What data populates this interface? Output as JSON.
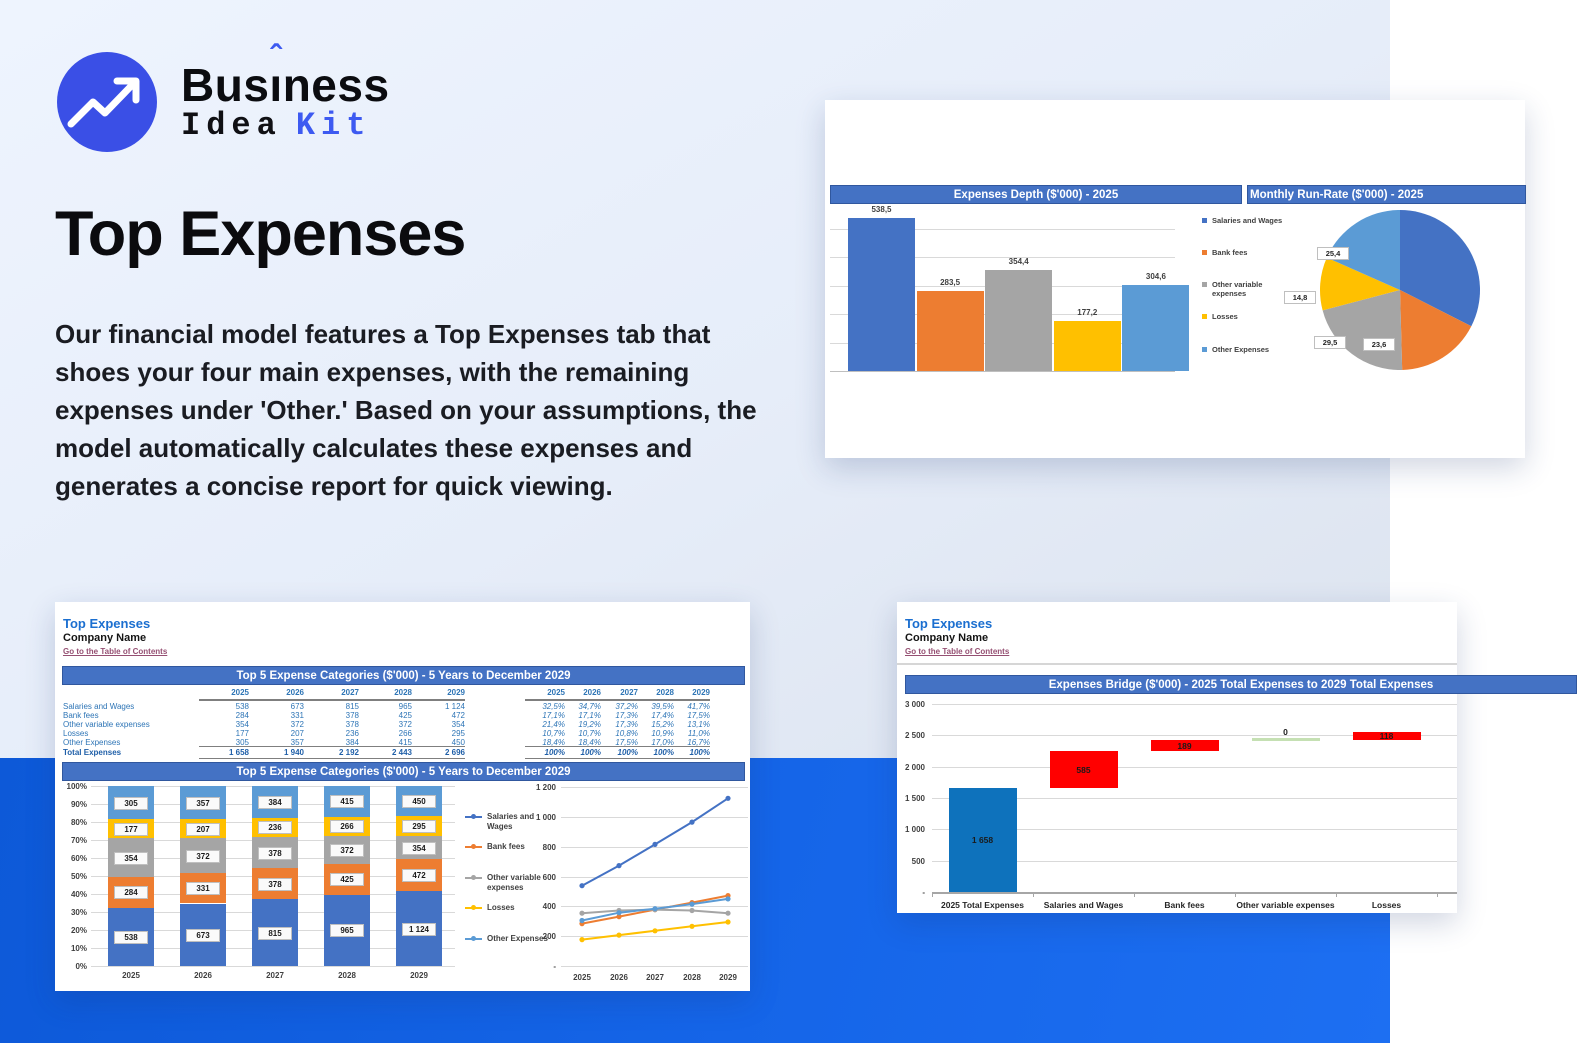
{
  "logo": {
    "brand_top_prefix": "Bus",
    "brand_top_i": "ı",
    "brand_top_caret": "ˆ",
    "brand_top_suffix": "ness",
    "brand_bottom_word1": "Idea",
    "brand_bottom_word2": "Kit"
  },
  "hero": {
    "title": "Top Expenses",
    "description": "Our financial model features a Top Expenses tab that shoes your four main expenses, with the remaining expenses under 'Other.' Based on your assumptions, the model automatically calculates these expenses and generates a concise report for quick viewing."
  },
  "sheet_header": {
    "title": "Top Expenses",
    "company": "Company Name",
    "link": "Go to the Table of Contents"
  },
  "top_right_panel": {
    "header_left": "Expenses Depth ($'000) - 2025",
    "header_right": "Monthly Run-Rate ($'000) - 2025"
  },
  "bottom_left_panel": {
    "banner_top": "Top 5 Expense Categories ($'000) - 5 Years to December 2029",
    "banner_chart": "Top 5 Expense Categories ($'000) - 5 Years to December 2029",
    "table": {
      "years": [
        "2025",
        "2026",
        "2027",
        "2028",
        "2029"
      ],
      "rows": [
        {
          "label": "Salaries and Wages",
          "values": [
            "538",
            "673",
            "815",
            "965",
            "1 124"
          ],
          "pcts": [
            "32,5%",
            "34,7%",
            "37,2%",
            "39,5%",
            "41,7%"
          ]
        },
        {
          "label": "Bank fees",
          "values": [
            "284",
            "331",
            "378",
            "425",
            "472"
          ],
          "pcts": [
            "17,1%",
            "17,1%",
            "17,3%",
            "17,4%",
            "17,5%"
          ]
        },
        {
          "label": "Other variable expenses",
          "values": [
            "354",
            "372",
            "378",
            "372",
            "354"
          ],
          "pcts": [
            "21,4%",
            "19,2%",
            "17,3%",
            "15,2%",
            "13,1%"
          ]
        },
        {
          "label": "Losses",
          "values": [
            "177",
            "207",
            "236",
            "266",
            "295"
          ],
          "pcts": [
            "10,7%",
            "10,7%",
            "10,8%",
            "10,9%",
            "11,0%"
          ]
        },
        {
          "label": "Other Expenses",
          "values": [
            "305",
            "357",
            "384",
            "415",
            "450"
          ],
          "pcts": [
            "18,4%",
            "18,4%",
            "17,5%",
            "17,0%",
            "16,7%"
          ]
        }
      ],
      "total": {
        "label": "Total Expenses",
        "values": [
          "1 658",
          "1 940",
          "2 192",
          "2 443",
          "2 696"
        ],
        "pcts": [
          "100%",
          "100%",
          "100%",
          "100%",
          "100%"
        ]
      }
    }
  },
  "bottom_right_panel": {
    "banner": "Expenses Bridge ($'000) - 2025 Total Expenses to 2029 Total Expenses"
  },
  "chart_data": [
    {
      "id": "expenses_depth",
      "type": "bar",
      "title": "Expenses Depth ($'000) - 2025",
      "categories": [
        "Salaries and Wages",
        "Bank fees",
        "Other variable expenses",
        "Losses",
        "Other Expenses"
      ],
      "values": [
        538.5,
        283.5,
        354.4,
        177.2,
        304.6
      ],
      "labels": [
        "538,5",
        "283,5",
        "354,4",
        "177,2",
        "304,6"
      ],
      "colors": [
        "#4472C4",
        "#ED7D31",
        "#A5A5A5",
        "#FFC000",
        "#5B9BD5"
      ],
      "ylim": [
        0,
        600
      ],
      "grid_step": 100,
      "legend": [
        "Salaries and Wages",
        "Bank fees",
        "Other variable expenses",
        "Losses",
        "Other Expenses"
      ],
      "legend_position": "right"
    },
    {
      "id": "monthly_run_rate",
      "type": "pie",
      "title": "Monthly Run-Rate ($'000) - 2025",
      "categories": [
        "Salaries and Wages",
        "Bank fees",
        "Other variable expenses",
        "Losses",
        "Other Expenses"
      ],
      "values": [
        44.9,
        23.6,
        29.5,
        14.8,
        25.4
      ],
      "labels": [
        "",
        "23,6",
        "29,5",
        "14,8",
        "25,4"
      ],
      "colors": [
        "#4472C4",
        "#ED7D31",
        "#A5A5A5",
        "#FFC000",
        "#5B9BD5"
      ]
    },
    {
      "id": "top5_stacked",
      "type": "stacked-bar-100",
      "title": "Top 5 Expense Categories ($'000) - 5 Years to December 2029",
      "categories": [
        "2025",
        "2026",
        "2027",
        "2028",
        "2029"
      ],
      "series": [
        {
          "name": "Salaries and Wages",
          "color": "#4472C4",
          "values": [
            538,
            673,
            815,
            965,
            1124
          ],
          "labels": [
            "538",
            "673",
            "815",
            "965",
            "1 124"
          ]
        },
        {
          "name": "Bank fees",
          "color": "#ED7D31",
          "values": [
            284,
            331,
            378,
            425,
            472
          ],
          "labels": [
            "284",
            "331",
            "378",
            "425",
            "472"
          ]
        },
        {
          "name": "Other variable expenses",
          "color": "#A5A5A5",
          "values": [
            354,
            372,
            378,
            372,
            354
          ],
          "labels": [
            "354",
            "372",
            "378",
            "372",
            "354"
          ]
        },
        {
          "name": "Losses",
          "color": "#FFC000",
          "values": [
            177,
            207,
            236,
            266,
            295
          ],
          "labels": [
            "177",
            "207",
            "236",
            "266",
            "295"
          ]
        },
        {
          "name": "Other Expenses",
          "color": "#5B9BD5",
          "values": [
            305,
            357,
            384,
            415,
            450
          ],
          "labels": [
            "305",
            "357",
            "384",
            "415",
            "450"
          ]
        }
      ],
      "ylabels": [
        "0%",
        "10%",
        "20%",
        "30%",
        "40%",
        "50%",
        "60%",
        "70%",
        "80%",
        "90%",
        "100%"
      ],
      "legend_position": "right"
    },
    {
      "id": "top5_lines",
      "type": "line",
      "categories": [
        "2025",
        "2026",
        "2027",
        "2028",
        "2029"
      ],
      "series": [
        {
          "name": "Salaries and Wages",
          "color": "#4472C4",
          "values": [
            538,
            673,
            815,
            965,
            1124
          ]
        },
        {
          "name": "Bank fees",
          "color": "#ED7D31",
          "values": [
            284,
            331,
            378,
            425,
            472
          ]
        },
        {
          "name": "Other variable expenses",
          "color": "#A5A5A5",
          "values": [
            354,
            372,
            378,
            372,
            354
          ]
        },
        {
          "name": "Losses",
          "color": "#FFC000",
          "values": [
            177,
            207,
            236,
            266,
            295
          ]
        },
        {
          "name": "Other Expenses",
          "color": "#5B9BD5",
          "values": [
            305,
            357,
            384,
            415,
            450
          ]
        }
      ],
      "ylim": [
        0,
        1200
      ],
      "yticks": [
        {
          "v": 0,
          "label": "-"
        },
        {
          "v": 200,
          "label": "200"
        },
        {
          "v": 400,
          "label": "400"
        },
        {
          "v": 600,
          "label": "600"
        },
        {
          "v": 800,
          "label": "800"
        },
        {
          "v": 1000,
          "label": "1 000"
        },
        {
          "v": 1200,
          "label": "1 200"
        }
      ]
    },
    {
      "id": "expenses_bridge",
      "type": "waterfall",
      "title": "Expenses Bridge ($'000) - 2025 Total Expenses to 2029 Total Expenses",
      "categories": [
        "2025 Total Expenses",
        "Salaries and Wages",
        "Bank fees",
        "Other variable expenses",
        "Losses"
      ],
      "steps": [
        {
          "label": "1 658",
          "start": 0,
          "end": 1658,
          "color": "#0E72BC",
          "thin": false
        },
        {
          "label": "585",
          "start": 1658,
          "end": 2243,
          "color": "#FF0000",
          "thin": false
        },
        {
          "label": "189",
          "start": 2243,
          "end": 2432,
          "color": "#FF0000",
          "thin": false
        },
        {
          "label": "0",
          "start": 2432,
          "end": 2432,
          "color": "#C5E0B3",
          "thin": true
        },
        {
          "label": "118",
          "start": 2432,
          "end": 2550,
          "color": "#FF0000",
          "thin": false
        }
      ],
      "ylim": [
        0,
        3000
      ],
      "yticks": [
        {
          "v": 0,
          "label": "-"
        },
        {
          "v": 500,
          "label": "500"
        },
        {
          "v": 1000,
          "label": "1 000"
        },
        {
          "v": 1500,
          "label": "1 500"
        },
        {
          "v": 2000,
          "label": "2 000"
        },
        {
          "v": 2500,
          "label": "2 500"
        },
        {
          "v": 3000,
          "label": "3 000"
        }
      ]
    }
  ]
}
